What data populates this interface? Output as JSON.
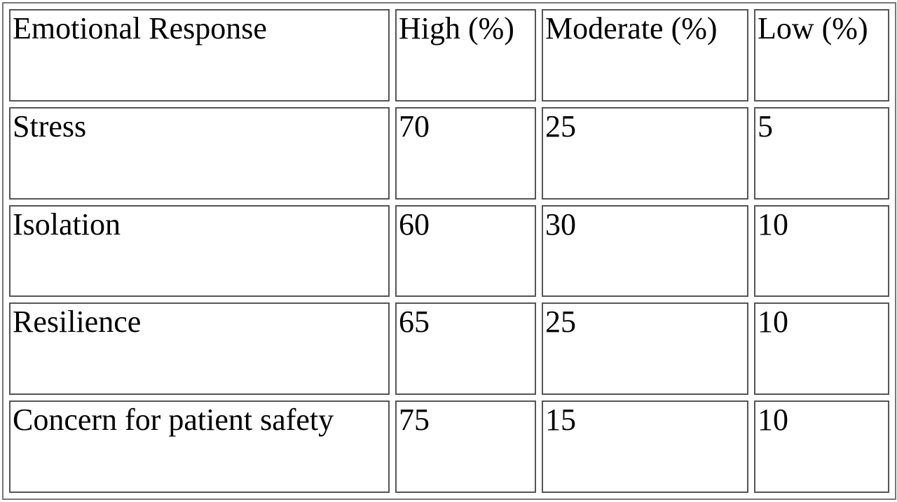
{
  "table": {
    "header": [
      "Emotional Response",
      "High (%)",
      "Moderate (%)",
      "Low (%)"
    ],
    "rows": [
      [
        "Stress",
        70,
        25,
        5
      ],
      [
        "Isolation",
        60,
        30,
        10
      ],
      [
        "Resilience",
        65,
        25,
        10
      ],
      [
        "Concern for patient safety",
        75,
        15,
        10
      ]
    ]
  }
}
